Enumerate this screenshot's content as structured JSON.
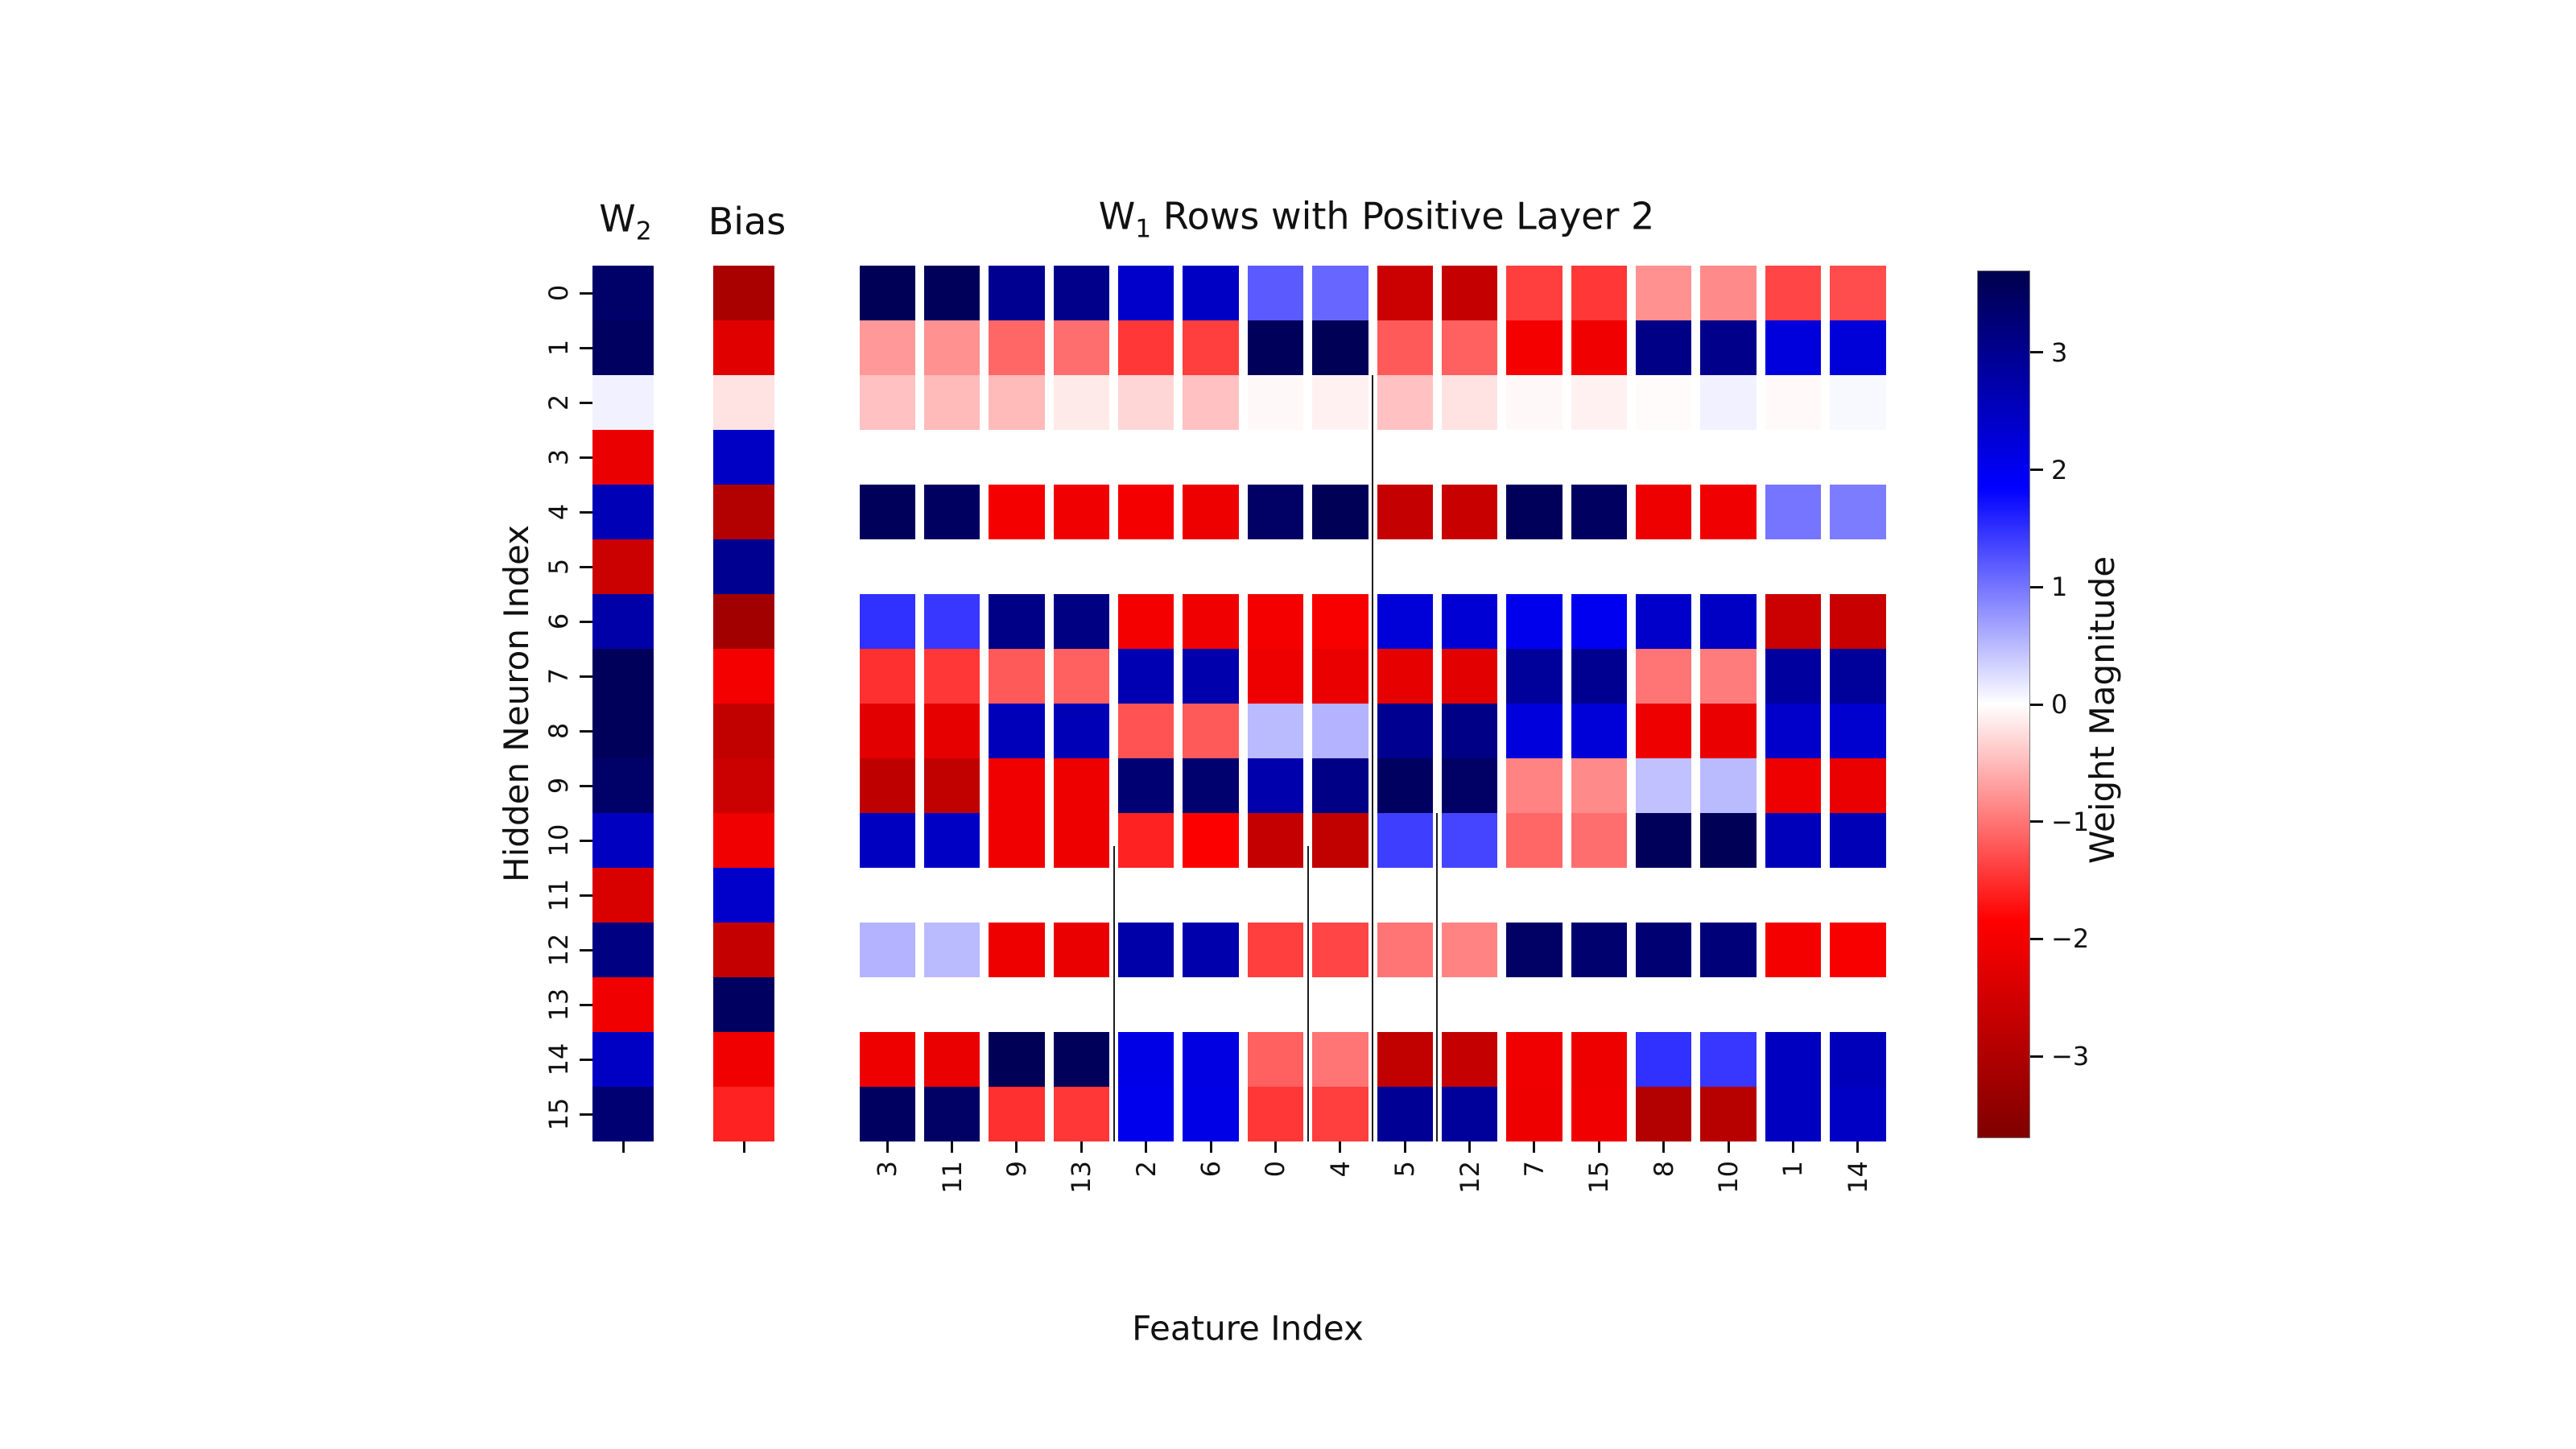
{
  "titles": {
    "w2_main": "W",
    "w2_sub": "2",
    "bias": "Bias",
    "main_pre": "W",
    "main_sub": "1",
    "main_rest": " Rows with Positive Layer 2"
  },
  "labels": {
    "x": "Feature Index",
    "y": "Hidden Neuron Index"
  },
  "chart_data": {
    "type": "heatmap",
    "title": "W1 Rows with Positive Layer 2",
    "xlabel": "Feature Index",
    "ylabel": "Hidden Neuron Index",
    "colormap": "seismic-reversed (blue = positive, red = negative, white = 0)",
    "vmin": -3.7,
    "vmax": 3.7,
    "x_tick_labels": [
      "3",
      "11",
      "9",
      "13",
      "2",
      "6",
      "0",
      "4",
      "5",
      "12",
      "7",
      "15",
      "8",
      "10",
      "1",
      "14"
    ],
    "y_tick_labels": [
      "0",
      "1",
      "2",
      "3",
      "4",
      "5",
      "6",
      "7",
      "8",
      "9",
      "10",
      "11",
      "12",
      "13",
      "14",
      "15"
    ],
    "w2_column_title": "W2",
    "bias_column_title": "Bias",
    "w2_values": [
      3.4,
      3.5,
      0.1,
      -2.15,
      2.6,
      -2.6,
      2.75,
      3.55,
      3.55,
      3.4,
      2.5,
      -2.4,
      3.15,
      -2.05,
      2.45,
      3.3
    ],
    "bias_values": [
      -3.1,
      -2.3,
      -0.2,
      2.45,
      -2.95,
      3.0,
      -3.2,
      -2.0,
      -2.75,
      -2.6,
      -2.05,
      2.4,
      -2.7,
      3.5,
      -2.05,
      -1.6
    ],
    "w1_matrix": [
      [
        3.6,
        3.55,
        3.0,
        3.05,
        2.4,
        2.45,
        1.2,
        1.1,
        -2.6,
        -2.7,
        -1.4,
        -1.45,
        -0.8,
        -0.85,
        -1.35,
        -1.3
      ],
      [
        -0.75,
        -0.8,
        -1.1,
        -1.05,
        -1.45,
        -1.4,
        3.55,
        3.6,
        -1.2,
        -1.15,
        -2.0,
        -2.05,
        3.1,
        3.05,
        2.2,
        2.25
      ],
      [
        -0.45,
        -0.5,
        -0.5,
        -0.15,
        -0.3,
        -0.45,
        -0.05,
        -0.1,
        -0.45,
        -0.2,
        -0.05,
        -0.1,
        -0.03,
        0.1,
        -0.04,
        0.05
      ],
      [
        0,
        0,
        0,
        0,
        0,
        0,
        0,
        0,
        0,
        0,
        0,
        0,
        0,
        0,
        0,
        0
      ],
      [
        3.55,
        3.5,
        -2.0,
        -2.05,
        -2.0,
        -2.1,
        3.45,
        3.6,
        -2.7,
        -2.65,
        3.55,
        3.5,
        -2.1,
        -2.05,
        1.0,
        0.95
      ],
      [
        0,
        0,
        0,
        0,
        0,
        0,
        0,
        0,
        0,
        0,
        0,
        0,
        0,
        0,
        0,
        0
      ],
      [
        1.5,
        1.45,
        3.1,
        3.15,
        -2.0,
        -2.05,
        -2.0,
        -1.95,
        2.25,
        2.3,
        2.05,
        2.0,
        2.4,
        2.45,
        -2.6,
        -2.65
      ],
      [
        -1.5,
        -1.45,
        -1.2,
        -1.15,
        2.65,
        2.7,
        -2.1,
        -2.15,
        -2.2,
        -2.25,
        2.9,
        3.0,
        -1.0,
        -0.95,
        2.85,
        2.9
      ],
      [
        -2.25,
        -2.2,
        2.55,
        2.6,
        -1.25,
        -1.2,
        0.5,
        0.55,
        3.0,
        3.1,
        2.2,
        2.25,
        -2.1,
        -2.15,
        2.4,
        2.35
      ],
      [
        -2.8,
        -2.75,
        -2.05,
        -2.1,
        3.3,
        3.35,
        2.7,
        3.1,
        3.5,
        3.45,
        -0.9,
        -0.85,
        0.45,
        0.5,
        -2.1,
        -2.15
      ],
      [
        2.5,
        2.45,
        -2.05,
        -2.1,
        -1.6,
        -1.9,
        -2.7,
        -2.75,
        1.4,
        1.35,
        -1.1,
        -1.05,
        3.55,
        3.6,
        2.55,
        2.6
      ],
      [
        0,
        0,
        0,
        0,
        0,
        0,
        0,
        0,
        0,
        0,
        0,
        0,
        0,
        0,
        0,
        0
      ],
      [
        0.55,
        0.5,
        -2.1,
        -2.15,
        2.75,
        2.7,
        -1.4,
        -1.35,
        -1.0,
        -0.9,
        3.45,
        3.35,
        3.3,
        3.25,
        -2.0,
        -1.95
      ],
      [
        0,
        0,
        0,
        0,
        0,
        0,
        0,
        0,
        0,
        0,
        0,
        0,
        0,
        0,
        0,
        0
      ],
      [
        -2.1,
        -2.15,
        3.6,
        3.55,
        2.1,
        2.15,
        -1.15,
        -1.0,
        -2.75,
        -2.7,
        -2.05,
        -2.1,
        1.5,
        1.45,
        2.5,
        2.55
      ],
      [
        3.5,
        3.45,
        -1.5,
        -1.45,
        2.05,
        2.1,
        -1.45,
        -1.4,
        2.95,
        2.9,
        -2.1,
        -2.05,
        -2.95,
        -2.9,
        2.5,
        2.45
      ]
    ],
    "separators": [
      {
        "after_col": 8,
        "from_row": 2,
        "to_row": 16
      },
      {
        "after_col": 9,
        "from_row": 10,
        "to_row": 16
      },
      {
        "after_col": 4,
        "from_row": 10.6,
        "to_row": 16
      },
      {
        "after_col": 7,
        "from_row": 10.6,
        "to_row": 16
      }
    ],
    "colorbar": {
      "label": "Weight Magnitude",
      "tick_values": [
        3,
        2,
        1,
        0,
        -1,
        -2,
        -3
      ],
      "tick_labels": [
        "3",
        "2",
        "1",
        "0",
        "−1",
        "−2",
        "−3"
      ],
      "gradient_top_to_bottom": [
        "#00004d",
        "#0000ff",
        "#ffffff",
        "#ff0000",
        "#800000"
      ],
      "legend_position": "right"
    }
  }
}
